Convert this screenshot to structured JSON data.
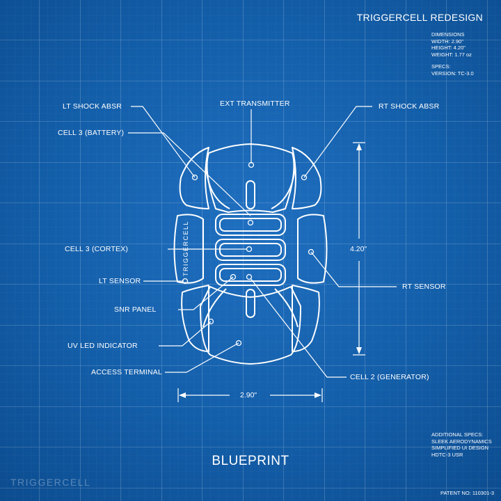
{
  "header": {
    "title": "TRIGGERCELL REDESIGN",
    "dimensions": {
      "heading": "DIMENSIONS",
      "width": "WIDTH: 2.90\"",
      "height": "HEIGHT: 4.20\"",
      "weight": "WEIGHT: 1.77 oz"
    },
    "specs": {
      "heading": "SPECS:",
      "version": "VERSION: TC-3.0"
    }
  },
  "callouts": {
    "lt_shock": "LT SHOCK ABSR",
    "cell3_battery": "CELL 3 (BATTERY)",
    "ext_transmitter": "EXT TRANSMITTER",
    "rt_shock": "RT SHOCK ABSR",
    "cell3_cortex": "CELL 3 (CORTEX)",
    "rt_sensor": "RT SENSOR",
    "lt_sensor": "LT SENSOR",
    "snr_panel": "SNR PANEL",
    "uv_led": "UV LED INDICATOR",
    "access_terminal": "ACCESS TERMINAL",
    "cell2_generator": "CELL 2 (GENERATOR)"
  },
  "device": {
    "side_text": "TRIGGERCELL"
  },
  "measurements": {
    "height": "4.20\"",
    "width": "2.90\""
  },
  "additional": {
    "heading": "ADDITIONAL SPECS:",
    "lines": [
      "SLEEK AERODYNAMICS",
      "SIMPLIFIED UI DESIGN",
      "HDTC-3 USR"
    ]
  },
  "footer": {
    "title": "BLUEPRINT",
    "brand": "TRIGGERCELL",
    "patent": "PATENT NO: 110301-3"
  }
}
